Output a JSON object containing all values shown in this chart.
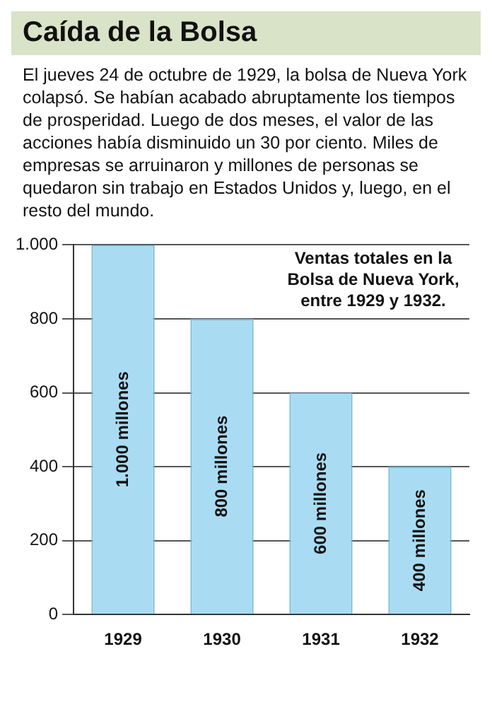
{
  "chart_data": {
    "type": "bar",
    "title": "Caída de la Bolsa",
    "subtitle": "El jueves 24 de octubre de 1929, la bolsa de Nueva York colapsó. Se habían acabado abruptamente los tiempos de prosperidad. Luego de dos meses, el valor de las acciones había disminuido un 30 por ciento. Miles de empresas se arruinaron y millones de personas se quedaron sin trabajo en Estados Unidos y, luego, en el resto del mundo.",
    "annotations": [
      "Ventas totales en la Bolsa de Nueva York, entre 1929 y 1932."
    ],
    "categories": [
      "1929",
      "1930",
      "1931",
      "1932"
    ],
    "values": [
      1000,
      800,
      600,
      400
    ],
    "value_labels": [
      "1.000 millones",
      "800 millones",
      "600 millones",
      "400 millones"
    ],
    "color": "#a9dcf2",
    "ylim": [
      0,
      1000
    ],
    "yticks": [
      0,
      200,
      400,
      600,
      800,
      {
        "value": 1000,
        "label": "1.000"
      }
    ],
    "grid": "y",
    "legend": false
  }
}
